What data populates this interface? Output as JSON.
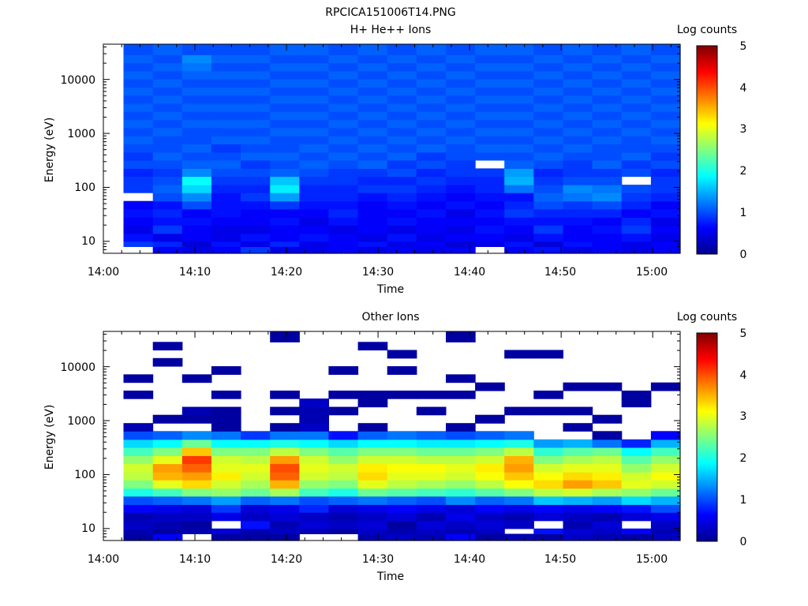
{
  "figure_title": "RPCICA151006T14.PNG",
  "colorbar_ticks": [
    "0",
    "1",
    "2",
    "3",
    "4",
    "5"
  ],
  "chart_data": [
    {
      "type": "heatmap",
      "title": "H+ He++ Ions",
      "xlabel": "Time",
      "ylabel": "Energy (eV)",
      "colorbar_label": "Log counts",
      "xticks": [
        "14:00",
        "14:10",
        "14:20",
        "14:30",
        "14:40",
        "14:50",
        "15:00"
      ],
      "yticks": [
        "10",
        "100",
        "1000",
        "10000"
      ],
      "y_scale": "log",
      "ylim": [
        6,
        45000
      ],
      "xlim_minutes": [
        0,
        63
      ],
      "clim": [
        0,
        5
      ],
      "time_columns_minutes": [
        2.2,
        5.4,
        8.6,
        11.8,
        15.0,
        18.2,
        21.4,
        24.6,
        27.8,
        31.0,
        34.2,
        37.4,
        40.6,
        43.8,
        47.0,
        50.2,
        53.4,
        56.6,
        59.8,
        63.0
      ],
      "energy_edges_eV": [
        6,
        8,
        10,
        14,
        20,
        28,
        40,
        56,
        80,
        112,
        160,
        225,
        320,
        450,
        640,
        900,
        1280,
        1800,
        2560,
        3600,
        5100,
        7200,
        10200,
        14400,
        20400,
        28800,
        45000
      ],
      "colormap": [
        "#00008f",
        "#0000ff",
        "#00ffff",
        "#ffff00",
        "#ff0000",
        "#800000"
      ],
      "data": [
        [
          null,
          0.6,
          0.5,
          0.6,
          0.9,
          0.5,
          0.5,
          0.6,
          0.5,
          0.6,
          0.5,
          0.6,
          null,
          0.6,
          0.7,
          0.5,
          0.6,
          0.5,
          0.6
        ],
        [
          0.9,
          0.8,
          0.4,
          0.7,
          0.5,
          0.8,
          0.5,
          0.6,
          0.7,
          0.5,
          0.6,
          0.4,
          0.5,
          0.7,
          0.4,
          0.7,
          0.6,
          0.5,
          0.6
        ],
        [
          0.7,
          0.5,
          0.6,
          0.5,
          0.7,
          0.6,
          0.7,
          0.6,
          0.5,
          0.7,
          0.5,
          0.6,
          0.6,
          0.5,
          0.7,
          0.6,
          0.6,
          0.7,
          0.5
        ],
        [
          0.5,
          0.9,
          0.6,
          0.5,
          0.5,
          0.6,
          0.6,
          0.5,
          0.6,
          0.5,
          0.6,
          0.5,
          0.7,
          0.6,
          0.9,
          0.6,
          0.7,
          0.9,
          0.6
        ],
        [
          0.6,
          0.7,
          0.7,
          0.6,
          0.6,
          0.7,
          0.5,
          0.7,
          0.6,
          0.7,
          0.6,
          0.6,
          0.6,
          0.7,
          0.7,
          0.7,
          0.6,
          0.8,
          0.5
        ],
        [
          0.7,
          0.8,
          0.6,
          0.7,
          0.6,
          0.6,
          0.6,
          0.8,
          0.6,
          0.6,
          0.7,
          0.5,
          0.7,
          0.9,
          0.8,
          0.8,
          0.8,
          0.6,
          0.7
        ],
        [
          0.6,
          0.7,
          1.0,
          0.7,
          0.7,
          0.9,
          0.7,
          0.7,
          0.6,
          0.7,
          0.6,
          0.7,
          0.6,
          0.8,
          1.0,
          0.9,
          1.0,
          0.8,
          0.6
        ],
        [
          null,
          1.0,
          1.3,
          0.7,
          0.9,
          1.4,
          0.8,
          0.8,
          0.7,
          0.8,
          0.7,
          0.6,
          0.7,
          0.7,
          1.1,
          1.2,
          1.3,
          0.9,
          0.8
        ],
        [
          0.9,
          1.1,
          1.7,
          0.8,
          0.8,
          1.8,
          0.8,
          0.8,
          0.9,
          0.9,
          0.8,
          0.7,
          0.8,
          1.2,
          1.0,
          1.3,
          1.2,
          1.0,
          0.9
        ],
        [
          0.9,
          1.0,
          1.9,
          0.9,
          0.9,
          1.6,
          0.9,
          0.9,
          0.8,
          0.8,
          0.9,
          0.8,
          0.8,
          1.5,
          0.9,
          1.0,
          1.0,
          null,
          0.9
        ],
        [
          0.8,
          0.9,
          1.3,
          1.0,
          1.0,
          1.1,
          1.0,
          0.9,
          0.9,
          1.0,
          0.8,
          0.9,
          0.9,
          1.4,
          0.8,
          0.9,
          0.9,
          1.0,
          0.8
        ],
        [
          1.0,
          1.0,
          1.1,
          1.1,
          0.9,
          1.0,
          1.1,
          1.0,
          1.1,
          0.9,
          1.0,
          0.9,
          null,
          1.1,
          1.0,
          0.9,
          1.1,
          0.9,
          1.0
        ],
        [
          0.9,
          1.1,
          1.0,
          1.0,
          1.1,
          1.1,
          1.0,
          1.1,
          1.0,
          1.1,
          0.9,
          1.0,
          1.0,
          1.0,
          1.1,
          1.0,
          1.0,
          1.1,
          0.9
        ],
        [
          1.0,
          1.0,
          1.1,
          0.9,
          1.0,
          1.0,
          1.1,
          1.0,
          1.1,
          1.0,
          1.1,
          1.0,
          1.1,
          1.1,
          1.0,
          1.1,
          1.0,
          1.0,
          1.0
        ],
        [
          1.1,
          1.0,
          1.0,
          1.1,
          1.1,
          1.0,
          1.0,
          1.1,
          1.0,
          1.1,
          1.0,
          1.1,
          1.0,
          1.0,
          1.1,
          1.0,
          1.1,
          1.0,
          1.1
        ],
        [
          1.0,
          1.1,
          1.0,
          1.0,
          1.0,
          1.1,
          1.1,
          1.0,
          1.1,
          1.0,
          1.1,
          1.0,
          1.1,
          1.1,
          1.0,
          1.1,
          1.0,
          1.1,
          1.0
        ],
        [
          1.1,
          1.0,
          1.1,
          1.1,
          1.1,
          1.0,
          1.0,
          1.1,
          1.0,
          1.1,
          1.0,
          1.1,
          1.0,
          1.0,
          1.1,
          1.0,
          1.1,
          1.0,
          1.1
        ],
        [
          1.0,
          1.1,
          1.0,
          1.0,
          1.0,
          1.1,
          1.1,
          1.0,
          1.1,
          1.0,
          1.1,
          1.0,
          1.1,
          1.1,
          1.0,
          1.1,
          1.0,
          1.1,
          1.0
        ],
        [
          1.1,
          1.0,
          1.1,
          1.1,
          1.1,
          1.0,
          1.0,
          1.1,
          1.0,
          1.1,
          1.0,
          1.1,
          1.0,
          1.0,
          1.1,
          1.0,
          1.1,
          1.0,
          1.1
        ],
        [
          1.0,
          1.1,
          1.0,
          1.0,
          1.0,
          1.1,
          1.1,
          1.0,
          1.1,
          1.0,
          1.1,
          1.0,
          1.1,
          1.1,
          1.0,
          1.1,
          1.0,
          1.1,
          1.0
        ],
        [
          1.1,
          1.0,
          1.1,
          1.1,
          1.1,
          1.0,
          1.0,
          1.1,
          1.0,
          1.1,
          1.0,
          1.1,
          1.0,
          1.0,
          1.1,
          1.0,
          1.1,
          1.0,
          1.1
        ],
        [
          1.0,
          1.1,
          1.0,
          1.0,
          1.0,
          1.1,
          1.1,
          1.0,
          1.1,
          1.0,
          1.1,
          1.0,
          1.1,
          1.1,
          1.0,
          1.1,
          1.0,
          1.1,
          1.0
        ],
        [
          1.1,
          1.0,
          1.1,
          1.1,
          1.1,
          1.0,
          1.0,
          1.1,
          1.0,
          1.1,
          1.0,
          1.1,
          1.0,
          1.0,
          1.1,
          1.0,
          1.1,
          1.0,
          1.1
        ],
        [
          1.0,
          1.1,
          1.2,
          1.0,
          1.0,
          1.1,
          1.1,
          1.0,
          1.1,
          1.0,
          1.1,
          1.0,
          1.1,
          1.1,
          1.0,
          1.1,
          1.0,
          1.1,
          1.0
        ],
        [
          1.1,
          1.0,
          1.3,
          1.1,
          1.1,
          1.0,
          1.0,
          1.1,
          1.0,
          1.1,
          1.0,
          1.1,
          1.0,
          1.0,
          1.1,
          1.0,
          1.1,
          1.0,
          1.1
        ],
        [
          1.0,
          1.1,
          1.0,
          1.0,
          1.0,
          1.1,
          1.1,
          1.0,
          1.1,
          1.0,
          1.1,
          1.0,
          1.1,
          1.1,
          1.0,
          1.1,
          1.0,
          1.1,
          1.0
        ]
      ]
    },
    {
      "type": "heatmap",
      "title": "Other Ions",
      "xlabel": "Time",
      "ylabel": "Energy (eV)",
      "colorbar_label": "Log counts",
      "xticks": [
        "14:00",
        "14:10",
        "14:20",
        "14:30",
        "14:40",
        "14:50",
        "15:00"
      ],
      "yticks": [
        "10",
        "100",
        "1000",
        "10000"
      ],
      "y_scale": "log",
      "ylim": [
        6,
        45000
      ],
      "xlim_minutes": [
        0,
        63
      ],
      "clim": [
        0,
        5
      ],
      "time_columns_minutes": [
        2.2,
        5.4,
        8.6,
        11.8,
        15.0,
        18.2,
        21.4,
        24.6,
        27.8,
        31.0,
        34.2,
        37.4,
        40.6,
        43.8,
        47.0,
        50.2,
        53.4,
        56.6,
        59.8,
        63.0
      ],
      "energy_edges_eV": [
        6,
        8,
        10,
        14,
        20,
        28,
        40,
        56,
        80,
        112,
        160,
        225,
        320,
        450,
        640,
        900,
        1280,
        1800,
        2560,
        3600,
        5100,
        7200,
        10200,
        14400,
        20400,
        28800,
        45000
      ],
      "colormap": [
        "#00008f",
        "#0000ff",
        "#00ffff",
        "#ffff00",
        "#ff0000",
        "#800000"
      ],
      "data": [
        [
          0.1,
          0.6,
          null,
          0.1,
          0.1,
          0.1,
          null,
          null,
          0.2,
          0.3,
          0.2,
          0.6,
          0.1,
          0.2,
          0.1,
          0.3,
          0.2,
          0.1,
          0.3
        ],
        [
          0.2,
          0.1,
          0.2,
          0.4,
          0.2,
          0.3,
          0.2,
          0.1,
          0.3,
          0.2,
          0.3,
          0.2,
          0.3,
          null,
          0.7,
          0.4,
          0.3,
          0.6,
          0.2
        ],
        [
          0.3,
          0.2,
          0.1,
          null,
          0.7,
          0.2,
          0.4,
          0.3,
          0.4,
          0.1,
          0.4,
          0.3,
          0.4,
          0.3,
          null,
          0.2,
          0.4,
          null,
          0.3
        ],
        [
          0.2,
          0.3,
          0.3,
          0.5,
          0.3,
          0.4,
          0.3,
          0.2,
          0.3,
          0.4,
          0.2,
          0.5,
          0.3,
          0.2,
          0.4,
          0.3,
          0.2,
          0.4,
          0.5
        ],
        [
          0.6,
          0.5,
          0.4,
          0.9,
          0.4,
          0.5,
          0.8,
          0.4,
          0.5,
          0.6,
          0.5,
          0.4,
          0.6,
          0.5,
          0.6,
          0.5,
          0.6,
          0.7,
          1.0
        ],
        [
          1.0,
          1.1,
          1.2,
          1.4,
          1.1,
          1.2,
          1.0,
          1.1,
          1.2,
          1.1,
          1.0,
          1.3,
          1.1,
          1.2,
          1.6,
          1.5,
          1.4,
          1.7,
          1.5
        ],
        [
          2.0,
          2.2,
          2.5,
          2.6,
          2.4,
          2.7,
          2.2,
          2.0,
          2.4,
          2.3,
          2.2,
          2.1,
          2.3,
          2.5,
          2.8,
          2.9,
          2.7,
          2.6,
          2.4
        ],
        [
          2.5,
          3.0,
          3.3,
          2.9,
          2.7,
          3.5,
          2.6,
          2.5,
          3.0,
          2.8,
          2.7,
          2.6,
          2.8,
          3.1,
          3.3,
          3.6,
          3.4,
          3.0,
          2.9
        ],
        [
          2.8,
          3.5,
          3.6,
          3.2,
          2.9,
          3.9,
          2.9,
          2.8,
          3.3,
          3.0,
          3.0,
          2.9,
          3.1,
          3.4,
          3.1,
          3.3,
          3.2,
          2.9,
          3.1
        ],
        [
          2.9,
          3.6,
          3.9,
          3.0,
          3.0,
          4.0,
          3.0,
          2.9,
          3.2,
          3.1,
          3.1,
          3.0,
          3.2,
          3.6,
          2.9,
          3.0,
          3.0,
          2.6,
          2.9
        ],
        [
          2.6,
          3.0,
          4.1,
          2.9,
          2.8,
          3.6,
          2.9,
          2.6,
          2.9,
          2.9,
          2.8,
          2.8,
          2.9,
          3.5,
          2.5,
          2.7,
          2.8,
          2.3,
          2.6
        ],
        [
          2.2,
          2.5,
          3.4,
          2.5,
          2.5,
          2.8,
          2.5,
          2.3,
          2.5,
          2.5,
          2.4,
          2.4,
          2.5,
          2.8,
          2.1,
          2.3,
          2.4,
          1.9,
          2.2
        ],
        [
          1.7,
          1.9,
          2.4,
          1.9,
          1.9,
          2.0,
          1.9,
          1.7,
          1.9,
          1.9,
          1.8,
          1.8,
          1.9,
          2.0,
          1.4,
          1.5,
          1.2,
          0.8,
          1.5
        ],
        [
          1.0,
          1.1,
          1.3,
          1.2,
          0.9,
          1.2,
          1.2,
          0.7,
          1.1,
          1.2,
          1.1,
          1.0,
          1.1,
          1.2,
          null,
          null,
          0.1,
          null,
          0.6
        ],
        [
          0.2,
          null,
          null,
          0.1,
          null,
          0.1,
          0.3,
          null,
          0.1,
          null,
          null,
          0.1,
          null,
          null,
          null,
          0.1,
          null,
          null,
          null
        ],
        [
          null,
          0.1,
          0.1,
          0.1,
          null,
          null,
          0.2,
          null,
          null,
          null,
          null,
          null,
          0.1,
          null,
          null,
          null,
          0.1,
          null,
          null
        ],
        [
          null,
          null,
          0.2,
          0.1,
          null,
          0.1,
          0.2,
          0.1,
          null,
          null,
          0.1,
          null,
          null,
          0.1,
          0.1,
          0.1,
          null,
          null,
          null
        ],
        [
          null,
          null,
          null,
          null,
          null,
          null,
          0.3,
          null,
          0.1,
          null,
          null,
          null,
          null,
          null,
          null,
          null,
          null,
          0.1,
          null
        ],
        [
          0.1,
          null,
          null,
          0.1,
          null,
          0.1,
          null,
          0.1,
          0.1,
          0.1,
          0.1,
          0.1,
          null,
          null,
          0.1,
          null,
          null,
          0.1,
          null
        ],
        [
          null,
          null,
          null,
          null,
          null,
          null,
          null,
          null,
          null,
          null,
          null,
          null,
          0.1,
          null,
          null,
          0.1,
          0.1,
          null,
          0.1
        ],
        [
          0.1,
          null,
          0.1,
          null,
          null,
          null,
          null,
          null,
          null,
          null,
          null,
          0.1,
          null,
          null,
          null,
          null,
          null,
          null,
          null
        ],
        [
          null,
          null,
          null,
          0.1,
          null,
          null,
          null,
          0.1,
          null,
          0.1,
          null,
          null,
          null,
          null,
          null,
          null,
          null,
          null,
          null
        ],
        [
          null,
          0.1,
          null,
          null,
          null,
          null,
          null,
          null,
          null,
          null,
          null,
          null,
          null,
          null,
          null,
          null,
          null,
          null,
          null
        ],
        [
          null,
          null,
          null,
          null,
          null,
          null,
          null,
          null,
          null,
          0.1,
          null,
          null,
          null,
          0.1,
          0.1,
          null,
          null,
          null,
          null
        ],
        [
          null,
          0.1,
          null,
          null,
          null,
          null,
          null,
          null,
          0.1,
          null,
          null,
          null,
          null,
          null,
          null,
          null,
          null,
          null,
          null
        ],
        [
          null,
          null,
          null,
          null,
          null,
          0.1,
          null,
          null,
          null,
          null,
          null,
          0.1,
          null,
          null,
          null,
          null,
          null,
          null,
          null
        ]
      ]
    }
  ]
}
